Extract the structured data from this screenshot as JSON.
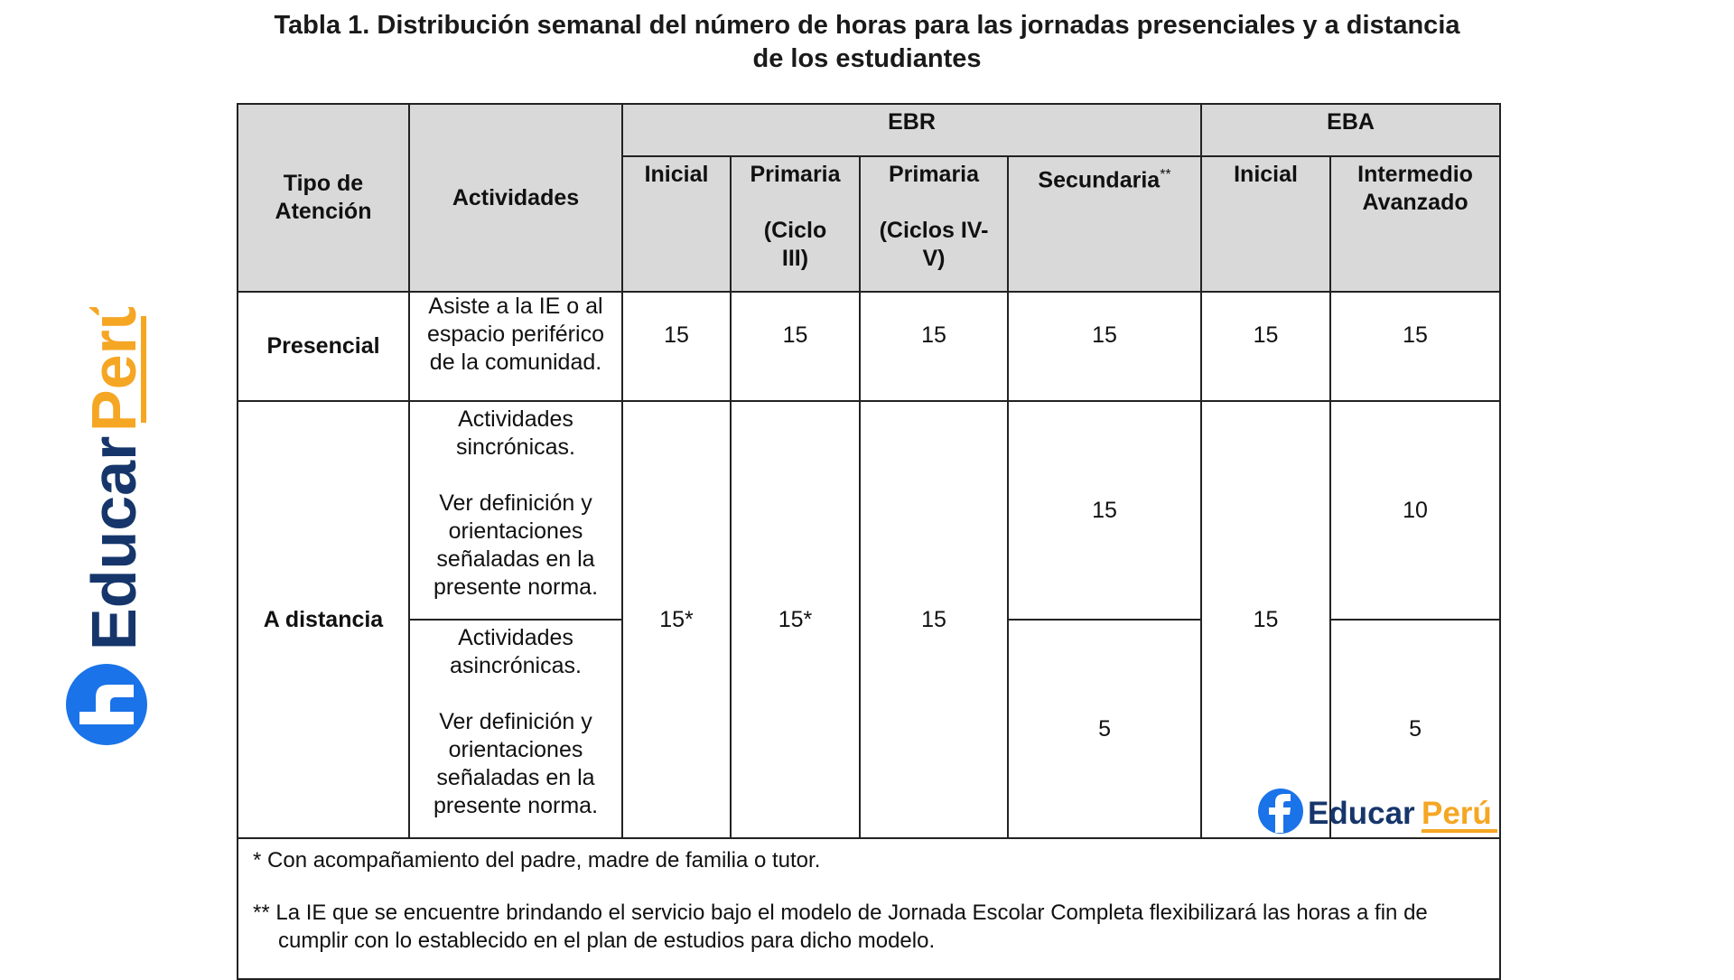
{
  "title": {
    "line1": "Tabla 1. Distribución semanal del número de horas para las jornadas presenciales y a distancia",
    "line2": "de los estudiantes"
  },
  "headers": {
    "tipo": "Tipo de Atención",
    "actividades": "Actividades",
    "ebr": "EBR",
    "eba": "EBA",
    "ebr_inicial": "Inicial",
    "primaria1_l1": "Primaria",
    "primaria1_l2": "(Ciclo III)",
    "primaria2_l1": "Primaria",
    "primaria2_l2": "(Ciclos IV-V)",
    "secundaria": "Secundaria",
    "secundaria_mark": "**",
    "eba_inicial": "Inicial",
    "intermedio": "Intermedio Avanzado"
  },
  "rows": {
    "presencial": {
      "tipo": "Presencial",
      "actividad": "Asiste a la IE o al espacio periférico de la comunidad.",
      "values": [
        "15",
        "15",
        "15",
        "15",
        "15",
        "15"
      ]
    },
    "distancia": {
      "tipo": "A distancia",
      "sincronicas_title": "Actividades sincrónicas.",
      "sincronicas_note": "Ver definición y orientaciones señaladas en la presente norma.",
      "asincronicas_title": "Actividades asincrónicas.",
      "asincronicas_note": "Ver definición y orientaciones señaladas en la presente norma.",
      "ebr_inicial": "15*",
      "primaria_ciclo3": "15*",
      "primaria_ciclos45": "15",
      "secundaria_sinc": "15",
      "secundaria_asinc": "5",
      "eba_inicial": "15",
      "intermedio_sinc": "10",
      "intermedio_asinc": "5"
    }
  },
  "notes": {
    "n1": "*  Con acompañamiento del padre, madre de familia o tutor.",
    "n2": "** La IE que se encuentre brindando el servicio bajo el modelo de Jornada Escolar Completa flexibilizará las horas a fin de cumplir con lo establecido en el plan de estudios para dicho modelo."
  },
  "brand": {
    "word1": "Educar",
    "word2": "Perú",
    "primary_color": "#1a73e8",
    "navy_color": "#16366b",
    "orange_color": "#f5a623"
  }
}
